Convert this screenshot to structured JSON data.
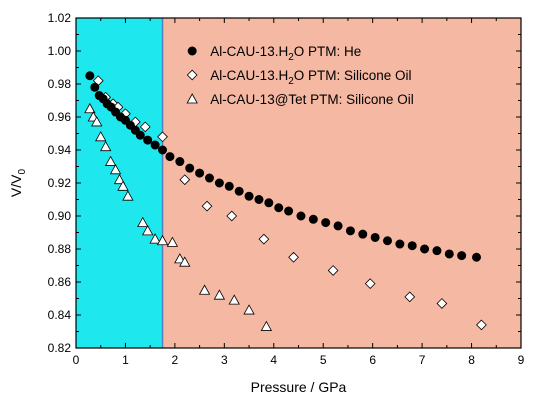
{
  "chart_data": {
    "type": "scatter",
    "xlabel": "Pressure / GPa",
    "ylabel": "V/V0",
    "ylabel_parts": {
      "base": "V/V",
      "sub": "0"
    },
    "xlim": [
      0,
      9
    ],
    "ylim": [
      0.82,
      1.02
    ],
    "x_ticks": [
      "0",
      "1",
      "2",
      "3",
      "4",
      "5",
      "6",
      "7",
      "8",
      "9"
    ],
    "y_ticks": [
      "0.82",
      "0.84",
      "0.86",
      "0.88",
      "0.90",
      "0.92",
      "0.94",
      "0.96",
      "0.98",
      "1.00",
      "1.02"
    ],
    "legend_position": "top-right",
    "regions": [
      {
        "from": 0,
        "to": 1.75,
        "color": "#1ee8ee"
      },
      {
        "from": 1.75,
        "to": 9,
        "color": "#f5b8a2"
      }
    ],
    "series": [
      {
        "name": "Al-CAU-13.H2O PTM: He",
        "legend_parts": [
          "Al-CAU-13.H",
          "2",
          "O PTM: He"
        ],
        "marker": "circle-filled",
        "color": "#000000",
        "x": [
          0.28,
          0.38,
          0.47,
          0.55,
          0.63,
          0.71,
          0.8,
          0.9,
          1.0,
          1.1,
          1.2,
          1.3,
          1.45,
          1.6,
          1.75,
          1.9,
          2.1,
          2.3,
          2.5,
          2.7,
          2.9,
          3.1,
          3.3,
          3.5,
          3.7,
          3.9,
          4.1,
          4.3,
          4.55,
          4.8,
          5.05,
          5.3,
          5.55,
          5.8,
          6.05,
          6.3,
          6.55,
          6.8,
          7.05,
          7.3,
          7.55,
          7.8,
          8.1
        ],
        "y": [
          0.985,
          0.978,
          0.973,
          0.971,
          0.968,
          0.966,
          0.963,
          0.96,
          0.958,
          0.955,
          0.952,
          0.949,
          0.946,
          0.943,
          0.94,
          0.936,
          0.933,
          0.929,
          0.926,
          0.923,
          0.92,
          0.918,
          0.915,
          0.912,
          0.91,
          0.908,
          0.905,
          0.903,
          0.9,
          0.898,
          0.896,
          0.894,
          0.891,
          0.889,
          0.887,
          0.885,
          0.883,
          0.882,
          0.88,
          0.879,
          0.877,
          0.876,
          0.875
        ]
      },
      {
        "name": "Al-CAU-13.H2O PTM: Silicone Oil",
        "legend_parts": [
          "Al-CAU-13.H",
          "2",
          "O PTM: Silicone Oil"
        ],
        "marker": "diamond-open",
        "color": "#000000",
        "x": [
          0.45,
          0.6,
          0.75,
          0.85,
          1.0,
          1.2,
          1.4,
          1.75,
          2.2,
          2.65,
          3.15,
          3.8,
          4.4,
          5.2,
          5.95,
          6.75,
          7.4,
          8.2
        ],
        "y": [
          0.982,
          0.972,
          0.968,
          0.966,
          0.962,
          0.957,
          0.954,
          0.948,
          0.922,
          0.906,
          0.9,
          0.886,
          0.875,
          0.867,
          0.859,
          0.851,
          0.847,
          0.834
        ]
      },
      {
        "name": "Al-CAU-13@Tet PTM: Silicone Oil",
        "legend_parts": [
          "Al-CAU-13@Tet PTM: Silicone Oil"
        ],
        "marker": "triangle-open",
        "color": "#000000",
        "x": [
          0.28,
          0.35,
          0.42,
          0.5,
          0.6,
          0.7,
          0.8,
          0.88,
          0.95,
          1.05,
          1.35,
          1.45,
          1.6,
          1.75,
          1.95,
          2.1,
          2.2,
          2.6,
          2.9,
          3.2,
          3.5,
          3.85
        ],
        "y": [
          0.965,
          0.96,
          0.957,
          0.948,
          0.942,
          0.933,
          0.928,
          0.922,
          0.918,
          0.912,
          0.896,
          0.891,
          0.886,
          0.885,
          0.884,
          0.874,
          0.872,
          0.855,
          0.852,
          0.849,
          0.843,
          0.833
        ]
      }
    ]
  }
}
